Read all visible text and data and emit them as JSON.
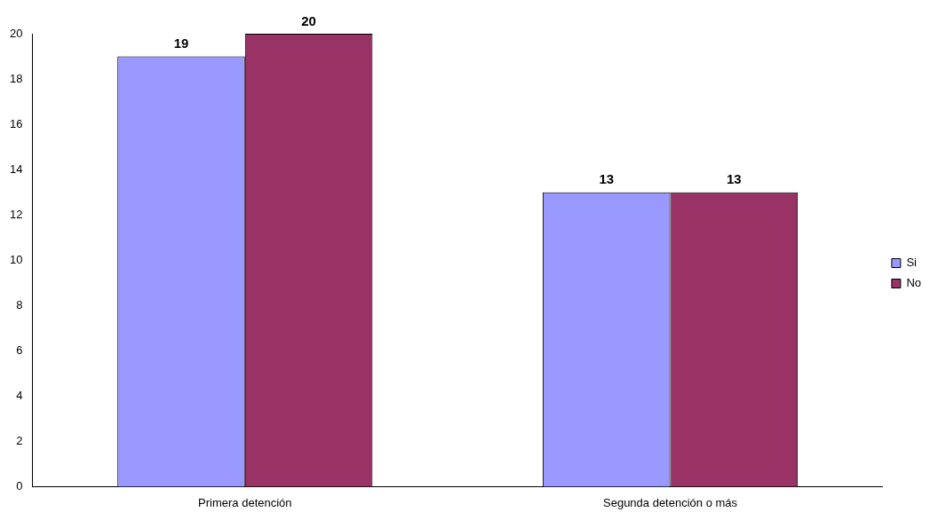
{
  "chart_data": {
    "type": "bar",
    "categories": [
      "Primera detención",
      "Segunda detención o más"
    ],
    "series": [
      {
        "name": "Si",
        "color": "#9999ff",
        "values": [
          19,
          13
        ]
      },
      {
        "name": "No",
        "color": "#993366",
        "values": [
          20,
          13
        ]
      }
    ],
    "ylim": [
      0,
      20
    ],
    "yticks": [
      0,
      2,
      4,
      6,
      8,
      10,
      12,
      14,
      16,
      18,
      20
    ],
    "grid": false,
    "legend": "right",
    "data_labels": true
  }
}
